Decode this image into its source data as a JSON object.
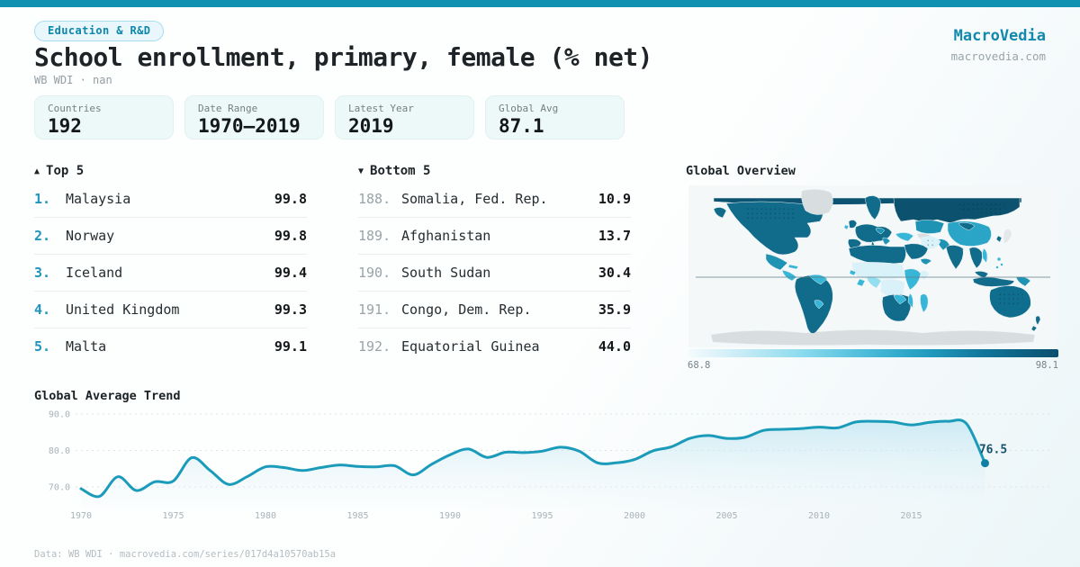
{
  "colors": {
    "accent": "#1191b1",
    "chart_line": "#1b9bba",
    "chart_dot": "#0e80a4",
    "chart_grid": "#dce6e9",
    "chart_tick_text": "#a9b3b8",
    "chart_end_label": "#17516c"
  },
  "header": {
    "badge": "Education & R&D",
    "title": "School enrollment, primary, female (% net)",
    "subtitle": "WB WDI · nan",
    "brand_name": "MacroVedia",
    "brand_url": "macrovedia.com"
  },
  "stats": [
    {
      "label": "Countries",
      "value": "192"
    },
    {
      "label": "Date Range",
      "value": "1970—2019"
    },
    {
      "label": "Latest Year",
      "value": "2019"
    },
    {
      "label": "Global Avg",
      "value": "87.1"
    }
  ],
  "top5": {
    "icon": "▲",
    "label": "Top 5",
    "rows": [
      {
        "rank": "1.",
        "name": "Malaysia",
        "value": "99.8"
      },
      {
        "rank": "2.",
        "name": "Norway",
        "value": "99.8"
      },
      {
        "rank": "3.",
        "name": "Iceland",
        "value": "99.4"
      },
      {
        "rank": "4.",
        "name": "United Kingdom",
        "value": "99.3"
      },
      {
        "rank": "5.",
        "name": "Malta",
        "value": "99.1"
      }
    ]
  },
  "bottom5": {
    "icon": "▼",
    "label": "Bottom 5",
    "rows": [
      {
        "rank": "188.",
        "name": "Somalia, Fed. Rep.",
        "value": "10.9"
      },
      {
        "rank": "189.",
        "name": "Afghanistan",
        "value": "13.7"
      },
      {
        "rank": "190.",
        "name": "South Sudan",
        "value": "30.4"
      },
      {
        "rank": "191.",
        "name": "Congo, Dem. Rep.",
        "value": "35.9"
      },
      {
        "rank": "192.",
        "name": "Equatorial Guinea",
        "value": "44.0"
      }
    ]
  },
  "map": {
    "header": "Global Overview",
    "legend_min": "68.8",
    "legend_max": "98.1"
  },
  "trend": {
    "header": "Global Average Trend"
  },
  "footer": {
    "text": "Data: WB WDI · macrovedia.com/series/017d4a10570ab15a"
  },
  "chart_data": [
    {
      "type": "area",
      "title": "Global Average Trend",
      "xlabel": "",
      "ylabel": "",
      "x": [
        1970,
        1971,
        1972,
        1973,
        1974,
        1975,
        1976,
        1977,
        1978,
        1979,
        1980,
        1981,
        1982,
        1983,
        1984,
        1985,
        1986,
        1987,
        1988,
        1989,
        1990,
        1991,
        1992,
        1993,
        1994,
        1995,
        1996,
        1997,
        1998,
        1999,
        2000,
        2001,
        2002,
        2003,
        2004,
        2005,
        2006,
        2007,
        2008,
        2009,
        2010,
        2011,
        2012,
        2013,
        2014,
        2015,
        2016,
        2017,
        2018,
        2019
      ],
      "values": [
        69.5,
        67.4,
        72.8,
        69.0,
        71.4,
        71.6,
        78.0,
        74.5,
        70.7,
        72.8,
        75.5,
        75.3,
        74.5,
        75.3,
        76.0,
        75.6,
        75.5,
        75.8,
        73.3,
        76.2,
        78.8,
        80.4,
        78.1,
        79.5,
        79.4,
        79.8,
        80.9,
        79.8,
        76.6,
        76.6,
        77.5,
        79.9,
        81.0,
        83.3,
        84.1,
        83.3,
        83.6,
        85.5,
        85.8,
        86.0,
        86.4,
        86.2,
        87.8,
        88.0,
        87.8,
        87.0,
        87.7,
        88.0,
        87.3,
        76.5
      ],
      "yticks": [
        90.0,
        80.0,
        70.0
      ],
      "xticks": [
        1970,
        1975,
        1980,
        1985,
        1990,
        1995,
        2000,
        2005,
        2010,
        2015
      ],
      "ylim": [
        63,
        95
      ],
      "grid": "dashed-horizontal",
      "legend": "none",
      "end_label": "76.5"
    },
    {
      "type": "heatmap",
      "subtype": "world-choropleth",
      "title": "Global Overview",
      "colorscale_min": 68.8,
      "colorscale_max": 98.1
    }
  ]
}
